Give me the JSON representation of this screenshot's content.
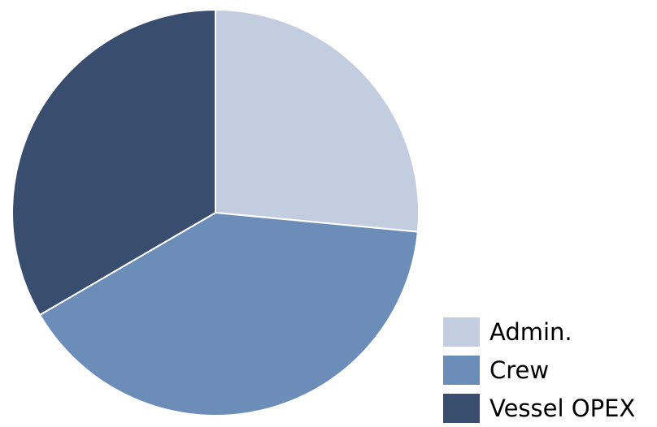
{
  "chart_data": {
    "type": "pie",
    "title": "",
    "categories": [
      "Admin.",
      "Crew",
      "Vessel OPEX"
    ],
    "values": [
      26.5,
      40.1,
      33.4
    ],
    "colors": [
      "#c2cee0",
      "#6d8db9",
      "#394e6e"
    ],
    "slice_border_color": "#ffffff",
    "start_angle": "12 o'clock",
    "direction": "clockwise",
    "legend_position": "bottom-right"
  }
}
